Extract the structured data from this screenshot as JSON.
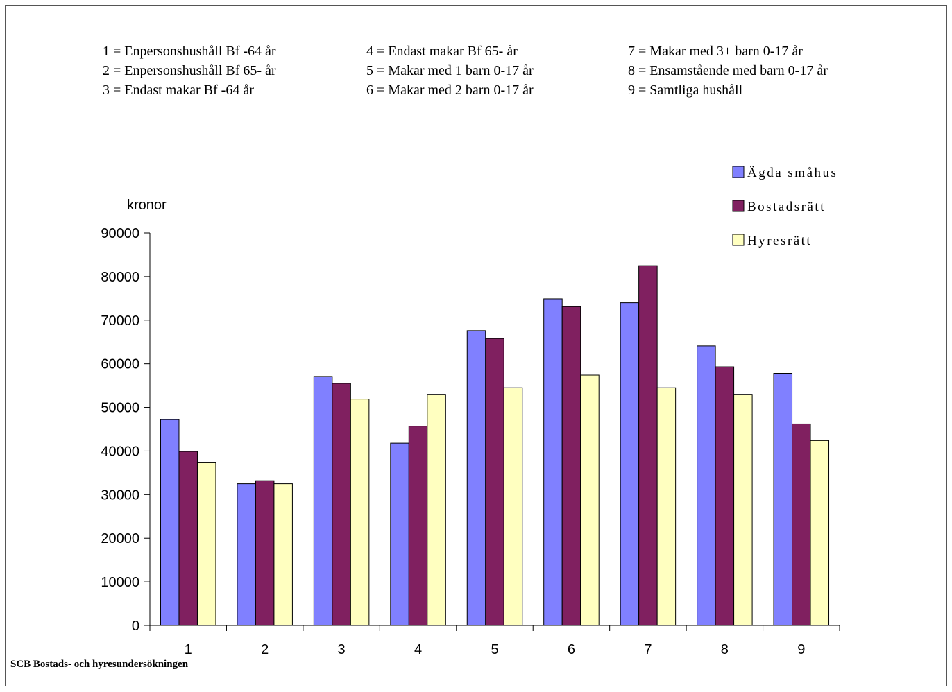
{
  "category_key": [
    [
      "1 = Enpersonshushåll Bf -64 år",
      "2 = Enpersonshushåll Bf 65- år",
      "3 = Endast makar Bf -64 år"
    ],
    [
      "4 = Endast makar Bf 65- år",
      "5 = Makar med 1 barn 0-17 år",
      "6 = Makar med 2 barn 0-17 år"
    ],
    [
      "7 = Makar med 3+ barn 0-17 år",
      "8 = Ensamstående med barn 0-17 år",
      "9 = Samtliga hushåll"
    ]
  ],
  "source": "SCB Bostads- och hyresundersökningen",
  "chart_data": {
    "type": "bar",
    "title": "",
    "xlabel": "",
    "ylabel": "kronor",
    "categories": [
      "1",
      "2",
      "3",
      "4",
      "5",
      "6",
      "7",
      "8",
      "9"
    ],
    "ylim": [
      0,
      90000
    ],
    "yticks": [
      "0",
      "10000",
      "20000",
      "30000",
      "40000",
      "50000",
      "60000",
      "70000",
      "80000",
      "90000"
    ],
    "grid": false,
    "legend_position": "top-right",
    "series": [
      {
        "name": "Ägda småhus",
        "color": "#8080ff",
        "values": [
          47200,
          32500,
          57100,
          41800,
          67600,
          74900,
          74000,
          64100,
          57800
        ]
      },
      {
        "name": "Bostadsrätt",
        "color": "#802060",
        "values": [
          39900,
          33200,
          55500,
          45700,
          65800,
          73100,
          82500,
          59300,
          46200
        ]
      },
      {
        "name": "Hyresrätt",
        "color": "#ffffc0",
        "values": [
          37300,
          32500,
          51900,
          53000,
          54500,
          57400,
          54500,
          53000,
          42400
        ]
      }
    ]
  }
}
